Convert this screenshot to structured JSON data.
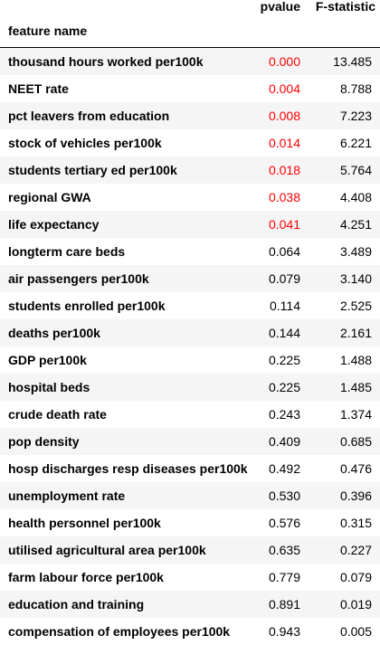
{
  "table": {
    "columns": {
      "pvalue": "pvalue",
      "fstat": "F-statistic"
    },
    "index_name": "feature name",
    "rows": [
      {
        "feature": "thousand hours worked per100k",
        "pvalue": "0.000",
        "fstat": "13.485",
        "significant": true
      },
      {
        "feature": "NEET rate",
        "pvalue": "0.004",
        "fstat": "8.788",
        "significant": true
      },
      {
        "feature": "pct leavers from education",
        "pvalue": "0.008",
        "fstat": "7.223",
        "significant": true
      },
      {
        "feature": "stock of vehicles per100k",
        "pvalue": "0.014",
        "fstat": "6.221",
        "significant": true
      },
      {
        "feature": "students tertiary ed per100k",
        "pvalue": "0.018",
        "fstat": "5.764",
        "significant": true
      },
      {
        "feature": "regional GWA",
        "pvalue": "0.038",
        "fstat": "4.408",
        "significant": true
      },
      {
        "feature": "life expectancy",
        "pvalue": "0.041",
        "fstat": "4.251",
        "significant": true
      },
      {
        "feature": "longterm care beds",
        "pvalue": "0.064",
        "fstat": "3.489",
        "significant": false
      },
      {
        "feature": "air passengers per100k",
        "pvalue": "0.079",
        "fstat": "3.140",
        "significant": false
      },
      {
        "feature": "students enrolled per100k",
        "pvalue": "0.114",
        "fstat": "2.525",
        "significant": false
      },
      {
        "feature": "deaths per100k",
        "pvalue": "0.144",
        "fstat": "2.161",
        "significant": false
      },
      {
        "feature": "GDP per100k",
        "pvalue": "0.225",
        "fstat": "1.488",
        "significant": false
      },
      {
        "feature": "hospital beds",
        "pvalue": "0.225",
        "fstat": "1.485",
        "significant": false
      },
      {
        "feature": "crude death rate",
        "pvalue": "0.243",
        "fstat": "1.374",
        "significant": false
      },
      {
        "feature": "pop density",
        "pvalue": "0.409",
        "fstat": "0.685",
        "significant": false
      },
      {
        "feature": "hosp discharges resp diseases per100k",
        "pvalue": "0.492",
        "fstat": "0.476",
        "significant": false
      },
      {
        "feature": "unemployment rate",
        "pvalue": "0.530",
        "fstat": "0.396",
        "significant": false
      },
      {
        "feature": "health personnel per100k",
        "pvalue": "0.576",
        "fstat": "0.315",
        "significant": false
      },
      {
        "feature": "utilised agricultural area per100k",
        "pvalue": "0.635",
        "fstat": "0.227",
        "significant": false
      },
      {
        "feature": "farm labour force per100k",
        "pvalue": "0.779",
        "fstat": "0.079",
        "significant": false
      },
      {
        "feature": "education and training",
        "pvalue": "0.891",
        "fstat": "0.019",
        "significant": false
      },
      {
        "feature": "compensation of employees per100k",
        "pvalue": "0.943",
        "fstat": "0.005",
        "significant": false
      }
    ]
  },
  "colors": {
    "significant_text": "#ff0000",
    "normal_text": "#000000",
    "stripe_row": "#f5f5f5",
    "plain_row": "#ffffff"
  }
}
